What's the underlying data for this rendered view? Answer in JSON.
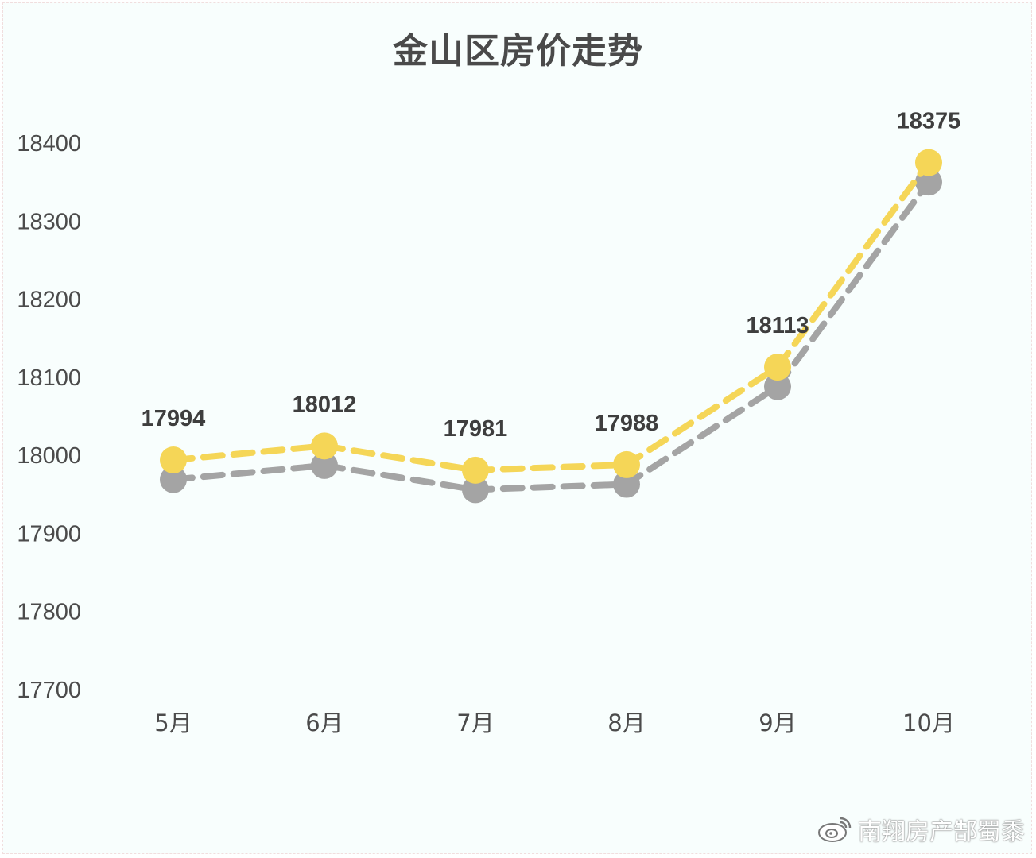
{
  "chart_data": {
    "type": "line",
    "title": "金山区房价走势",
    "categories": [
      "5月",
      "6月",
      "7月",
      "8月",
      "9月",
      "10月"
    ],
    "series": [
      {
        "values": [
          17994,
          18012,
          17981,
          17988,
          18113,
          18375
        ],
        "color": "#f5d657",
        "labeled": true
      },
      {
        "values": [
          17969,
          17987,
          17956,
          17963,
          18088,
          18350
        ],
        "color": "#a4a4a4",
        "labeled": false
      }
    ],
    "ylim": [
      17700,
      18400
    ],
    "yticks": [
      17700,
      17800,
      17900,
      18000,
      18100,
      18200,
      18300,
      18400
    ],
    "line_style": "dashed",
    "grid": false,
    "xlabel": "",
    "ylabel": ""
  },
  "watermark": {
    "text": "南翔房产郜蜀黍"
  }
}
